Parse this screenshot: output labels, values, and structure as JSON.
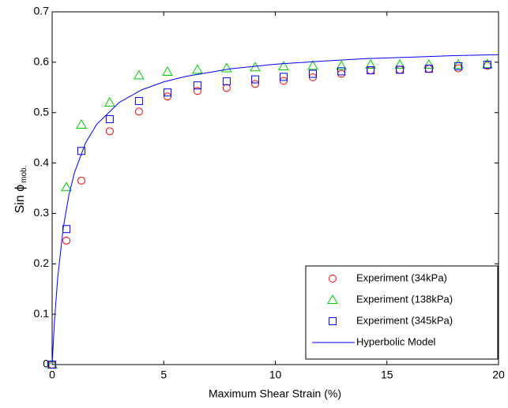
{
  "chart_data": {
    "type": "scatter",
    "xlabel": "Maximum Shear Strain (%)",
    "ylabel": "Sin ϕ",
    "ylabel_sub": "mob.",
    "xlim": [
      0,
      20
    ],
    "ylim": [
      0,
      0.7
    ],
    "xticks": [
      0,
      5,
      10,
      15,
      20
    ],
    "yticks": [
      0,
      0.1,
      0.2,
      0.3,
      0.4,
      0.5,
      0.6,
      0.7
    ],
    "legend": "lower right",
    "series": [
      {
        "name": "Experiment (34kPa)",
        "color": "#ff0000",
        "marker": "circle",
        "x": [
          0,
          0.64,
          1.31,
          2.58,
          3.89,
          5.17,
          6.51,
          7.82,
          9.1,
          10.37,
          11.68,
          12.96,
          14.27,
          15.58,
          16.88,
          18.2,
          19.5
        ],
        "values": [
          0,
          0.246,
          0.365,
          0.463,
          0.502,
          0.532,
          0.543,
          0.549,
          0.557,
          0.563,
          0.57,
          0.577,
          0.584,
          0.585,
          0.587,
          0.588,
          0.593
        ]
      },
      {
        "name": "Experiment (138kPa)",
        "color": "#00cc00",
        "marker": "triangle",
        "x": [
          0,
          0.64,
          1.31,
          2.58,
          3.89,
          5.17,
          6.51,
          7.82,
          9.1,
          10.37,
          11.68,
          12.96,
          14.27,
          15.58,
          16.88,
          18.2,
          19.5
        ],
        "values": [
          0,
          0.352,
          0.476,
          0.52,
          0.574,
          0.581,
          0.585,
          0.588,
          0.59,
          0.592,
          0.593,
          0.593,
          0.595,
          0.595,
          0.595,
          0.595,
          0.596
        ]
      },
      {
        "name": "Experiment (345kPa)",
        "color": "#0000ff",
        "marker": "square",
        "x": [
          0,
          0.64,
          1.31,
          2.58,
          3.89,
          5.17,
          6.51,
          7.82,
          9.1,
          10.37,
          11.68,
          12.96,
          14.27,
          15.58,
          16.88,
          18.2,
          19.5
        ],
        "values": [
          0,
          0.269,
          0.424,
          0.487,
          0.523,
          0.54,
          0.554,
          0.562,
          0.566,
          0.571,
          0.577,
          0.582,
          0.584,
          0.585,
          0.587,
          0.592,
          0.595
        ]
      },
      {
        "name": "Hyperbolic Model",
        "color": "#0000ff",
        "style": "line",
        "x": [
          0,
          0.1,
          0.25,
          0.5,
          0.75,
          1,
          1.5,
          2,
          3,
          4,
          5,
          6,
          8,
          10,
          12,
          14,
          16,
          18,
          20
        ],
        "values": [
          0,
          0.083,
          0.173,
          0.272,
          0.336,
          0.381,
          0.44,
          0.477,
          0.52,
          0.545,
          0.561,
          0.572,
          0.587,
          0.596,
          0.602,
          0.607,
          0.61,
          0.613,
          0.615
        ]
      }
    ]
  }
}
